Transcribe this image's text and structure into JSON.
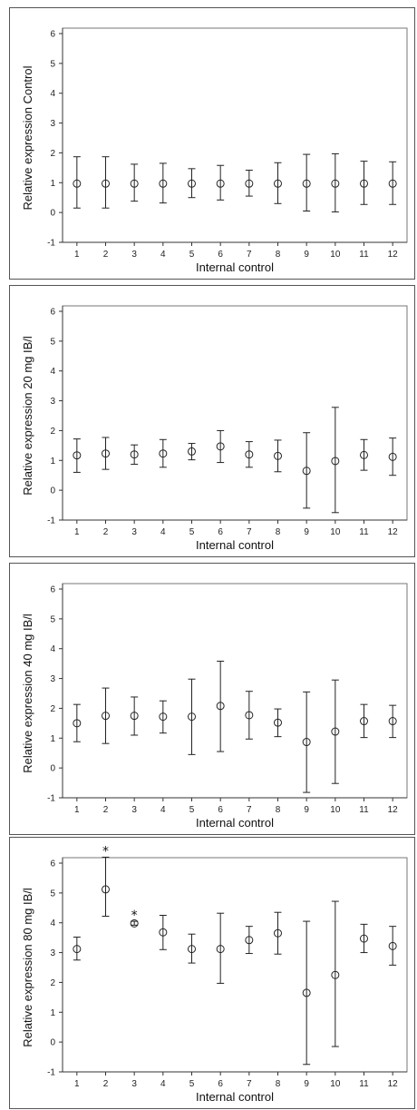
{
  "chart_data": [
    {
      "type": "scatter",
      "ylabel": "Relative expression Control",
      "xlabel": "Internal control",
      "ylim": [
        -1,
        6
      ],
      "yticks": [
        "-1",
        "0",
        "1",
        "2",
        "3",
        "4",
        "5",
        "6"
      ],
      "categories": [
        "1",
        "2",
        "3",
        "4",
        "5",
        "6",
        "7",
        "8",
        "9",
        "10",
        "11",
        "12"
      ],
      "values": [
        0.97,
        0.97,
        0.97,
        0.97,
        0.97,
        0.97,
        0.97,
        0.97,
        0.97,
        0.97,
        0.97,
        0.97
      ],
      "error_low": [
        0.15,
        0.15,
        0.38,
        0.32,
        0.5,
        0.42,
        0.55,
        0.3,
        0.05,
        0.02,
        0.27,
        0.27
      ],
      "error_high": [
        1.87,
        1.87,
        1.62,
        1.65,
        1.47,
        1.58,
        1.42,
        1.67,
        1.95,
        1.97,
        1.72,
        1.7
      ],
      "annotations": []
    },
    {
      "type": "scatter",
      "ylabel": "Relative expression 20 mg IB/l",
      "xlabel": "Internal control",
      "ylim": [
        -1,
        6
      ],
      "yticks": [
        "-1",
        "0",
        "1",
        "2",
        "3",
        "4",
        "5",
        "6"
      ],
      "categories": [
        "1",
        "2",
        "3",
        "4",
        "5",
        "6",
        "7",
        "8",
        "9",
        "10",
        "11",
        "12"
      ],
      "values": [
        1.17,
        1.23,
        1.2,
        1.23,
        1.3,
        1.47,
        1.2,
        1.15,
        0.65,
        0.98,
        1.18,
        1.12
      ],
      "error_low": [
        0.6,
        0.7,
        0.87,
        0.77,
        1.02,
        0.93,
        0.77,
        0.62,
        -0.6,
        -0.75,
        0.67,
        0.5
      ],
      "error_high": [
        1.72,
        1.77,
        1.52,
        1.7,
        1.57,
        2.0,
        1.63,
        1.68,
        1.93,
        2.78,
        1.7,
        1.75
      ],
      "annotations": []
    },
    {
      "type": "scatter",
      "ylabel": "Relative expression 40 mg IB/l",
      "xlabel": "Internal control",
      "ylim": [
        -1,
        6
      ],
      "yticks": [
        "-1",
        "0",
        "1",
        "2",
        "3",
        "4",
        "5",
        "6"
      ],
      "categories": [
        "1",
        "2",
        "3",
        "4",
        "5",
        "6",
        "7",
        "8",
        "9",
        "10",
        "11",
        "12"
      ],
      "values": [
        1.5,
        1.75,
        1.75,
        1.72,
        1.72,
        2.08,
        1.77,
        1.52,
        0.87,
        1.22,
        1.57,
        1.57
      ],
      "error_low": [
        0.88,
        0.82,
        1.1,
        1.17,
        0.45,
        0.55,
        0.97,
        1.05,
        -0.82,
        -0.52,
        1.02,
        1.02
      ],
      "error_high": [
        2.13,
        2.68,
        2.38,
        2.25,
        2.98,
        3.58,
        2.57,
        1.98,
        2.55,
        2.95,
        2.13,
        2.1
      ],
      "annotations": []
    },
    {
      "type": "scatter",
      "ylabel": "Relative expression 80 mg IB/l",
      "xlabel": "Internal control",
      "ylim": [
        -1,
        6
      ],
      "yticks": [
        "-1",
        "0",
        "1",
        "2",
        "3",
        "4",
        "5",
        "6"
      ],
      "categories": [
        "1",
        "2",
        "3",
        "4",
        "5",
        "6",
        "7",
        "8",
        "9",
        "10",
        "11",
        "12"
      ],
      "values": [
        3.12,
        5.12,
        3.98,
        3.68,
        3.12,
        3.12,
        3.42,
        3.65,
        1.65,
        2.25,
        3.47,
        3.22
      ],
      "error_low": [
        2.75,
        4.22,
        3.92,
        3.1,
        2.65,
        1.97,
        2.97,
        2.95,
        -0.75,
        -0.15,
        3.0,
        2.58
      ],
      "error_high": [
        3.52,
        6.2,
        4.05,
        4.25,
        3.62,
        4.32,
        3.88,
        4.35,
        4.05,
        4.72,
        3.95,
        3.88
      ],
      "annotations": [
        {
          "category_index": 1,
          "text": "*"
        },
        {
          "category_index": 2,
          "text": "*"
        }
      ]
    }
  ]
}
